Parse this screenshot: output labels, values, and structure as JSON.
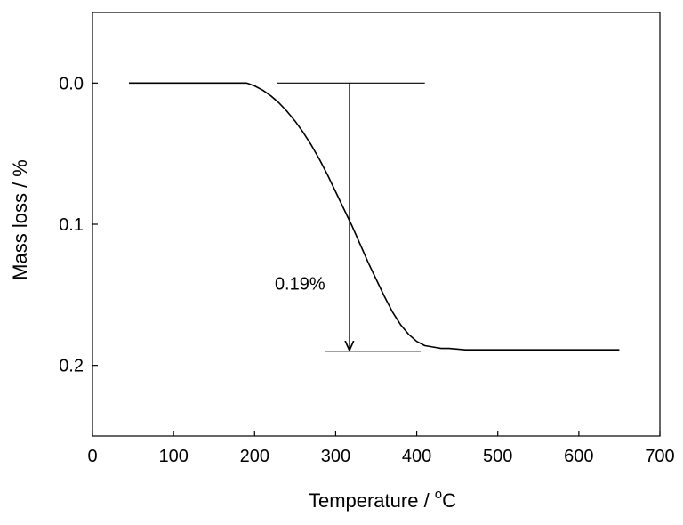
{
  "chart_data": {
    "type": "line",
    "title": "",
    "xlabel": "Temperature / ",
    "xlabel_degree": "o",
    "xlabel_unit": "C",
    "ylabel": "Mass loss / %",
    "xlim": [
      0,
      700
    ],
    "ylim": [
      -0.05,
      0.25
    ],
    "y_inverted": true,
    "grid": false,
    "legend": "none",
    "xticks": [
      0,
      100,
      200,
      300,
      400,
      500,
      600,
      700
    ],
    "xtick_labels": [
      "0",
      "100",
      "200",
      "300",
      "400",
      "500",
      "600",
      "700"
    ],
    "yticks": [
      0.0,
      0.1,
      0.2
    ],
    "ytick_labels": [
      "0.0",
      "0.1",
      "0.2"
    ],
    "series": [
      {
        "line_color": "#000000",
        "x": [
          45,
          60,
          80,
          100,
          120,
          140,
          160,
          180,
          190,
          200,
          210,
          220,
          230,
          240,
          250,
          260,
          270,
          280,
          290,
          300,
          310,
          320,
          330,
          340,
          350,
          360,
          370,
          380,
          390,
          400,
          410,
          420,
          430,
          440,
          460,
          480,
          500,
          520,
          540,
          560,
          580,
          600,
          620,
          640,
          650
        ],
        "y": [
          0.0,
          0.0,
          0.0,
          0.0,
          0.0,
          0.0,
          0.0,
          0.0,
          0.0,
          0.002,
          0.005,
          0.009,
          0.014,
          0.02,
          0.027,
          0.035,
          0.044,
          0.054,
          0.065,
          0.077,
          0.089,
          0.101,
          0.114,
          0.127,
          0.139,
          0.151,
          0.162,
          0.171,
          0.178,
          0.183,
          0.186,
          0.187,
          0.188,
          0.188,
          0.189,
          0.189,
          0.189,
          0.189,
          0.189,
          0.189,
          0.189,
          0.189,
          0.189,
          0.189,
          0.189
        ]
      }
    ],
    "annotations": {
      "label": "0.19%",
      "top_ref": {
        "y": 0.0,
        "x_start": 228,
        "x_end": 410
      },
      "bottom_ref": {
        "y": 0.19,
        "x_start": 287,
        "x_end": 405
      },
      "arrow": {
        "x": 317,
        "y_from": 0.0,
        "y_to": 0.19
      },
      "label_pos": {
        "x": 256,
        "y": 0.142
      }
    }
  }
}
